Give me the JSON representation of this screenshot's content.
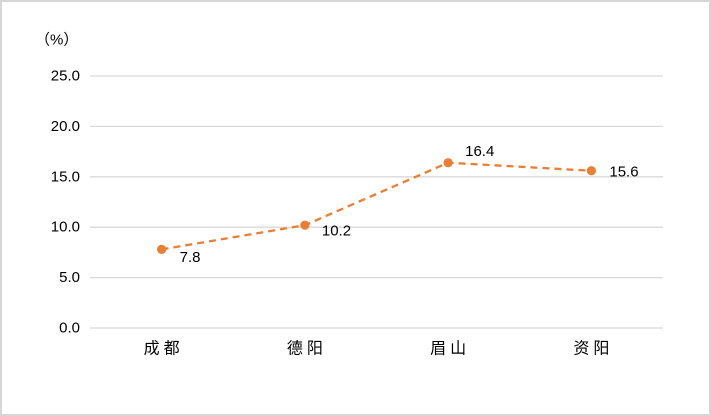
{
  "chart_data": {
    "type": "line",
    "title": "",
    "unit_label": "（%）",
    "categories": [
      "成 都",
      "德 阳",
      "眉 山",
      "资 阳"
    ],
    "values": [
      7.8,
      10.2,
      16.4,
      15.6
    ],
    "data_labels": [
      "7.8",
      "10.2",
      "16.4",
      "15.6"
    ],
    "y_ticks": [
      0,
      5,
      10,
      15,
      20,
      25
    ],
    "y_tick_labels": [
      "0.0",
      "5.0",
      "10.0",
      "15.0",
      "20.0",
      "25.0"
    ],
    "ylim": [
      0,
      25
    ],
    "xlabel": "",
    "ylabel": "（%）",
    "grid": true,
    "legend_position": "none",
    "line_style": "dashed",
    "colors": {
      "series": "#ED7D31",
      "gridline": "#D9D9D9",
      "text": "#000000",
      "frame_border": "#D6D6D6",
      "background": "#FFFFFF"
    }
  }
}
